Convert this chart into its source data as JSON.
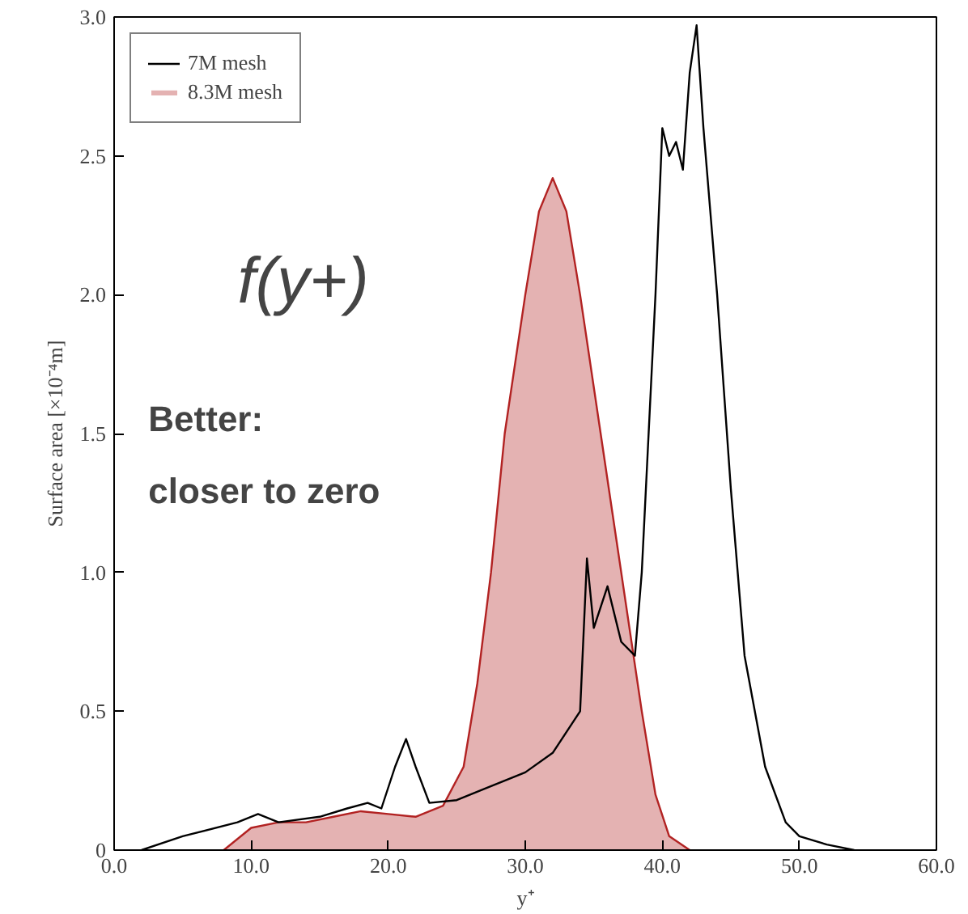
{
  "chart_data": {
    "type": "line",
    "xlabel": "y⁺",
    "ylabel": "Surface area [×10⁻⁴m]",
    "annotations": [
      "f(y+)",
      "Better:",
      "closer to zero"
    ],
    "xlim": [
      0,
      60
    ],
    "ylim": [
      0,
      3
    ],
    "xticks": [
      {
        "value": 0,
        "label": "0.0"
      },
      {
        "value": 10,
        "label": "10.0"
      },
      {
        "value": 20,
        "label": "20.0"
      },
      {
        "value": 30,
        "label": "30.0"
      },
      {
        "value": 40,
        "label": "40.0"
      },
      {
        "value": 50,
        "label": "50.0"
      },
      {
        "value": 60,
        "label": "60.0"
      }
    ],
    "yticks": [
      0,
      {
        "value": 0.5,
        "label": "0.5"
      },
      {
        "value": 1,
        "label": "1.0"
      },
      {
        "value": 1.5,
        "label": "1.5"
      },
      {
        "value": 2,
        "label": "2.0"
      },
      {
        "value": 2.5,
        "label": "2.5"
      },
      {
        "value": 3,
        "label": "3.0"
      }
    ],
    "legend": "top left",
    "grid": false,
    "series": [
      {
        "name": "7M mesh",
        "color": "#000000",
        "x": [
          2,
          5,
          9,
          10.5,
          12,
          15,
          17,
          18.5,
          19.5,
          20.5,
          21.3,
          22,
          23,
          25,
          27,
          30,
          32,
          34,
          34.5,
          35,
          36,
          37,
          38,
          38.5,
          39,
          39.5,
          40,
          40.5,
          41,
          41.5,
          42,
          42.5,
          43,
          44,
          45,
          46,
          47.5,
          49,
          50,
          52,
          54
        ],
        "values": [
          0,
          0.05,
          0.1,
          0.13,
          0.1,
          0.12,
          0.15,
          0.17,
          0.15,
          0.3,
          0.4,
          0.3,
          0.17,
          0.18,
          0.22,
          0.28,
          0.35,
          0.5,
          1.05,
          0.8,
          0.95,
          0.75,
          0.7,
          1.0,
          1.5,
          2.0,
          2.6,
          2.5,
          2.55,
          2.45,
          2.8,
          2.97,
          2.6,
          2.0,
          1.3,
          0.7,
          0.3,
          0.1,
          0.05,
          0.02,
          0
        ]
      },
      {
        "name": "8.3M mesh",
        "type": "area",
        "color": "#b22222",
        "x": [
          8,
          10,
          12,
          14,
          16,
          18,
          20,
          22,
          24,
          25.5,
          26.5,
          27.5,
          28.5,
          30,
          31,
          32,
          33,
          34,
          35.5,
          37,
          38.5,
          39.5,
          40.5,
          42
        ],
        "values": [
          0,
          0.08,
          0.1,
          0.1,
          0.12,
          0.14,
          0.13,
          0.12,
          0.16,
          0.3,
          0.6,
          1.0,
          1.5,
          2.0,
          2.3,
          2.42,
          2.3,
          2.0,
          1.5,
          1.0,
          0.5,
          0.2,
          0.05,
          0
        ]
      }
    ]
  }
}
